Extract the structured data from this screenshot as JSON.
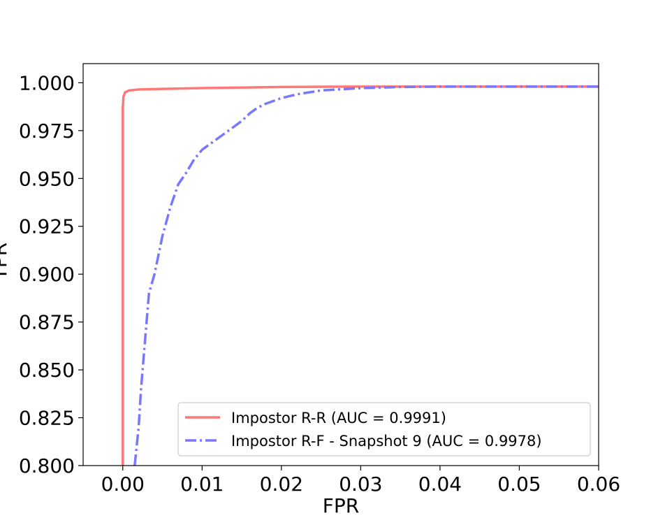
{
  "chart_data": {
    "type": "line",
    "title": "",
    "xlabel": "FPR",
    "ylabel": "TPR",
    "xlim": [
      -0.005,
      0.06
    ],
    "ylim": [
      0.8,
      1.01
    ],
    "xticks": [
      "0.00",
      "0.01",
      "0.02",
      "0.03",
      "0.04",
      "0.05",
      "0.06"
    ],
    "yticks": [
      "0.800",
      "0.825",
      "0.850",
      "0.875",
      "0.900",
      "0.925",
      "0.950",
      "0.975",
      "1.000"
    ],
    "grid": false,
    "legend_position": "lower-right",
    "series": [
      {
        "name": "Impostor R-R (AUC = 0.9991)",
        "color": "#ff7777",
        "style": "solid",
        "x": [
          0.0,
          0.0,
          0.0,
          0.0,
          0.0001,
          0.0003,
          0.0008,
          0.002,
          0.005,
          0.01,
          0.02,
          0.03,
          0.04,
          0.05,
          0.06
        ],
        "y": [
          0.8,
          0.9,
          0.98,
          0.987,
          0.993,
          0.995,
          0.996,
          0.9965,
          0.9968,
          0.9972,
          0.9978,
          0.998,
          0.998,
          0.998,
          0.998
        ]
      },
      {
        "name": "Impostor R-F - Snapshot 9 (AUC = 0.9978)",
        "color": "#7777ff",
        "style": "dashdot",
        "x": [
          0.0015,
          0.002,
          0.0023,
          0.0027,
          0.003,
          0.0033,
          0.004,
          0.0045,
          0.005,
          0.006,
          0.007,
          0.008,
          0.009,
          0.01,
          0.012,
          0.014,
          0.015,
          0.016,
          0.017,
          0.018,
          0.02,
          0.022,
          0.025,
          0.03,
          0.035,
          0.04,
          0.05,
          0.06
        ],
        "y": [
          0.8,
          0.82,
          0.84,
          0.86,
          0.875,
          0.89,
          0.9,
          0.91,
          0.92,
          0.935,
          0.947,
          0.953,
          0.96,
          0.965,
          0.971,
          0.977,
          0.98,
          0.984,
          0.987,
          0.989,
          0.992,
          0.994,
          0.996,
          0.9972,
          0.9978,
          0.998,
          0.998,
          0.998
        ]
      }
    ]
  }
}
